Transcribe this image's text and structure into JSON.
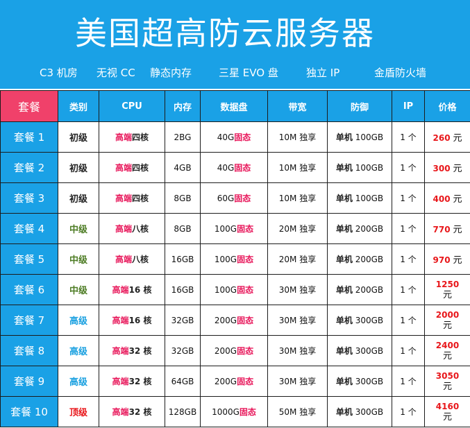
{
  "banner": {
    "title": "美国超高防云服务器",
    "features": [
      "C3 机房",
      "无视 CC",
      "静态内存",
      "三星 EVO 盘",
      "独立 IP",
      "金盾防火墙"
    ]
  },
  "table": {
    "headers": [
      "套餐",
      "类别",
      "CPU",
      "内存",
      "数据盘",
      "带宽",
      "防御",
      "IP",
      "价格"
    ],
    "rows": [
      {
        "name": "套餐 1",
        "level": "初级",
        "level_class": "basic",
        "cpu_a": "高端",
        "cpu_b": "四核",
        "mem": "2BG",
        "disk_size": "40G",
        "disk_type": "固态",
        "bw": "10M 独享",
        "def_a": "单机",
        "def_b": "100GB",
        "ip": "1 个",
        "price": "260",
        "unit": "元"
      },
      {
        "name": "套餐 2",
        "level": "初级",
        "level_class": "basic",
        "cpu_a": "高端",
        "cpu_b": "四核",
        "mem": "4GB",
        "disk_size": "40G",
        "disk_type": "固态",
        "bw": "10M 独享",
        "def_a": "单机",
        "def_b": "100GB",
        "ip": "1 个",
        "price": "300",
        "unit": "元"
      },
      {
        "name": "套餐 3",
        "level": "初级",
        "level_class": "basic",
        "cpu_a": "高端",
        "cpu_b": "四核",
        "mem": "8GB",
        "disk_size": "60G",
        "disk_type": "固态",
        "bw": "10M 独享",
        "def_a": "单机",
        "def_b": "100GB",
        "ip": "1 个",
        "price": "400",
        "unit": "元"
      },
      {
        "name": "套餐 4",
        "level": "中级",
        "level_class": "mid",
        "cpu_a": "高端",
        "cpu_b": "八核",
        "mem": "8GB",
        "disk_size": "100G",
        "disk_type": "固态",
        "bw": "20M 独享",
        "def_a": "单机",
        "def_b": "200GB",
        "ip": "1 个",
        "price": "770",
        "unit": "元"
      },
      {
        "name": "套餐 5",
        "level": "中级",
        "level_class": "mid",
        "cpu_a": "高端",
        "cpu_b": "八核",
        "mem": "16GB",
        "disk_size": "100G",
        "disk_type": "固态",
        "bw": "20M 独享",
        "def_a": "单机",
        "def_b": "200GB",
        "ip": "1 个",
        "price": "970",
        "unit": "元"
      },
      {
        "name": "套餐 6",
        "level": "中级",
        "level_class": "mid",
        "cpu_a": "高端",
        "cpu_b": "16 核",
        "mem": "16GB",
        "disk_size": "100G",
        "disk_type": "固态",
        "bw": "30M 独享",
        "def_a": "单机",
        "def_b": "200GB",
        "ip": "1 个",
        "price": "1250",
        "unit": "元"
      },
      {
        "name": "套餐 7",
        "level": "高级",
        "level_class": "high",
        "cpu_a": "高端",
        "cpu_b": "16 核",
        "mem": "32GB",
        "disk_size": "200G",
        "disk_type": "固态",
        "bw": "30M 独享",
        "def_a": "单机",
        "def_b": "300GB",
        "ip": "1 个",
        "price": "2000",
        "unit": "元"
      },
      {
        "name": "套餐 8",
        "level": "高级",
        "level_class": "high",
        "cpu_a": "高端",
        "cpu_b": "32 核",
        "mem": "32GB",
        "disk_size": "200G",
        "disk_type": "固态",
        "bw": "30M 独享",
        "def_a": "单机",
        "def_b": "300GB",
        "ip": "1 个",
        "price": "2400",
        "unit": "元"
      },
      {
        "name": "套餐 9",
        "level": "高级",
        "level_class": "high",
        "cpu_a": "高端",
        "cpu_b": "32 核",
        "mem": "64GB",
        "disk_size": "200G",
        "disk_type": "固态",
        "bw": "30M 独享",
        "def_a": "单机",
        "def_b": "300GB",
        "ip": "1 个",
        "price": "3050",
        "unit": "元"
      },
      {
        "name": "套餐 10",
        "level": "顶级",
        "level_class": "top",
        "cpu_a": "高端",
        "cpu_b": "32 核",
        "mem": "128GB",
        "disk_size": "1000G",
        "disk_type": "固态",
        "bw": "50M 独享",
        "def_a": "单机",
        "def_b": "300GB",
        "ip": "1 个",
        "price": "4160",
        "unit": "元"
      }
    ]
  },
  "colors": {
    "banner_bg": "#1aa1e6",
    "corner_bg": "#f0416a",
    "price_red": "#e8161a",
    "level_mid": "#4d7c24",
    "level_high": "#19a0e0",
    "level_top": "#e8161a"
  }
}
